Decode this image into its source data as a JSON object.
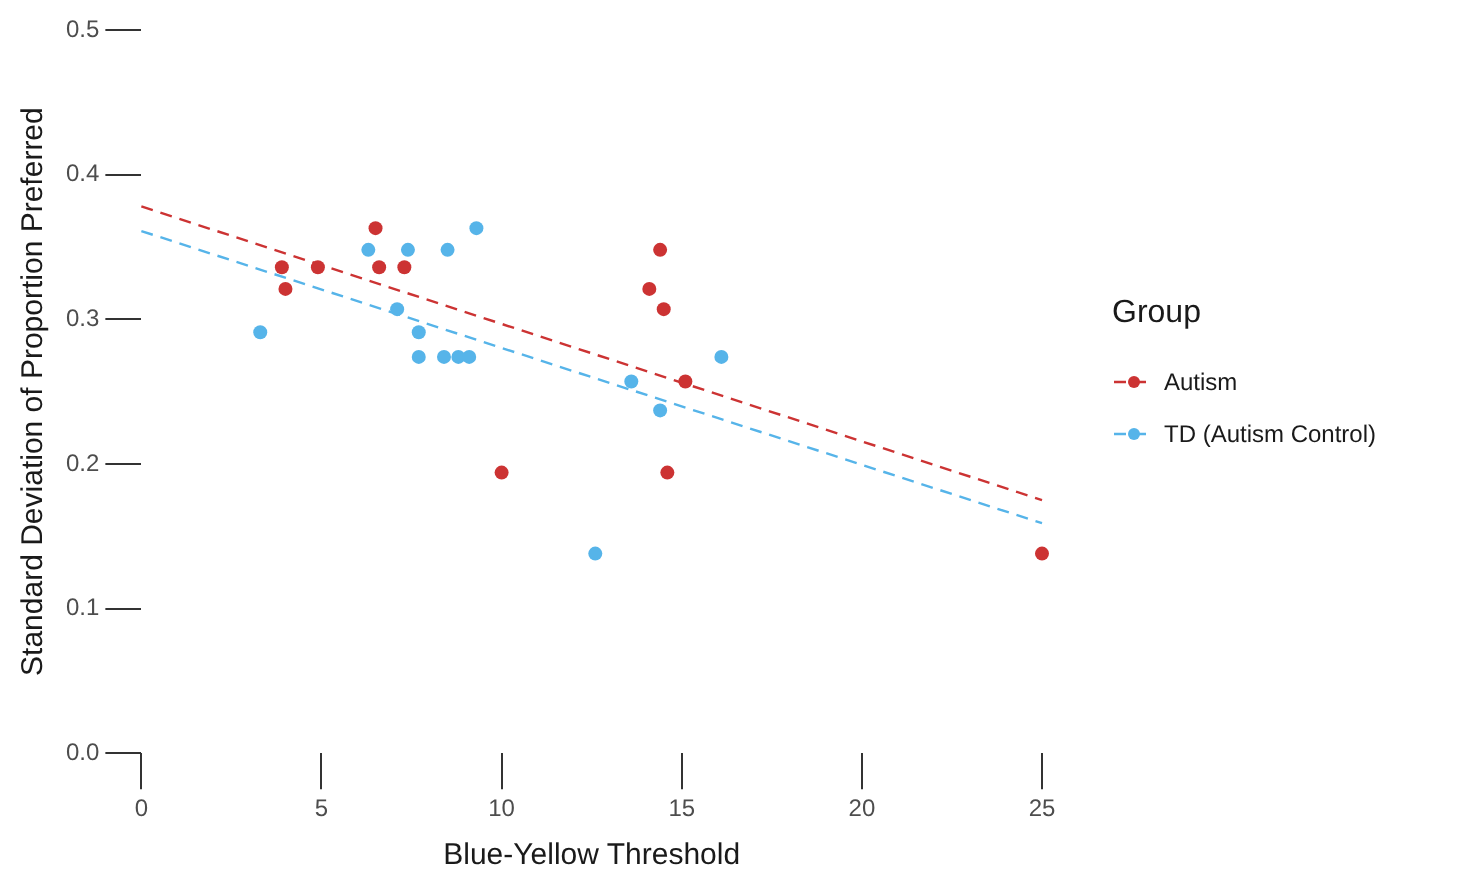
{
  "chart_data": {
    "type": "scatter",
    "xlabel": "Blue-Yellow Threshold",
    "ylabel": "Standard Deviation of Proportion Preferred",
    "legend_title": "Group",
    "legend": "right",
    "marker": "circle",
    "xlim": [
      0,
      25
    ],
    "xticks": [
      0,
      5,
      10,
      15,
      20,
      25
    ],
    "ylim": [
      0,
      0.5
    ],
    "yticks": [
      {
        "value": 0,
        "label": "0.0"
      },
      {
        "value": 0.1,
        "label": "0.1"
      },
      {
        "value": 0.2,
        "label": "0.2"
      },
      {
        "value": 0.3,
        "label": "0.3"
      },
      {
        "value": 0.4,
        "label": "0.4"
      },
      {
        "value": 0.5,
        "label": "0.5"
      }
    ],
    "series": [
      {
        "name": "Autism",
        "color": "#cc3333",
        "x": [
          3.9,
          4.0,
          4.9,
          6.5,
          6.6,
          7.3,
          10.0,
          14.4,
          14.1,
          14.5,
          15.1,
          14.6,
          25.0
        ],
        "values": [
          0.336,
          0.321,
          0.336,
          0.363,
          0.336,
          0.336,
          0.194,
          0.348,
          0.321,
          0.307,
          0.257,
          0.194,
          0.138
        ]
      },
      {
        "name": "TD (Autism Control)",
        "color": "#56b4e9",
        "x": [
          3.3,
          6.3,
          7.4,
          8.5,
          9.3,
          7.1,
          7.7,
          7.7,
          8.4,
          8.8,
          9.1,
          12.6,
          16.1,
          13.6,
          14.4
        ],
        "values": [
          0.291,
          0.348,
          0.348,
          0.348,
          0.363,
          0.307,
          0.291,
          0.274,
          0.274,
          0.274,
          0.274,
          0.138,
          0.274,
          0.257,
          0.237
        ]
      },
      {
        "type": "line",
        "color": "#cc3333",
        "line_style": "dashed",
        "marker": "none",
        "x": [
          0,
          25
        ],
        "values": [
          0.378,
          0.175
        ]
      },
      {
        "type": "line",
        "color": "#56b4e9",
        "line_style": "dashed",
        "marker": "none",
        "x": [
          0,
          25
        ],
        "values": [
          0.361,
          0.159
        ]
      }
    ]
  }
}
